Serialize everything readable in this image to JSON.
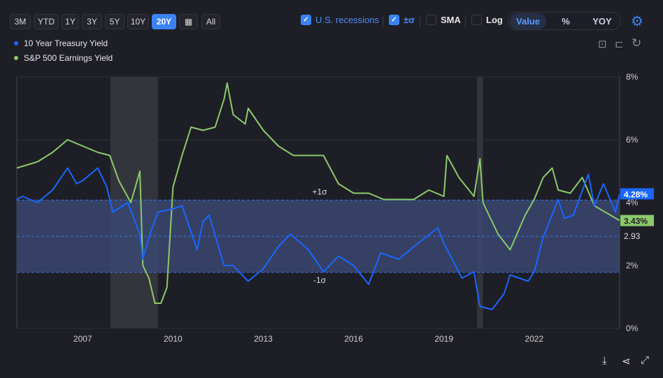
{
  "range_buttons": [
    "3M",
    "YTD",
    "1Y",
    "3Y",
    "5Y",
    "10Y",
    "20Y",
    "All"
  ],
  "active_range": "20Y",
  "legend": [
    {
      "label": "10 Year Treasury Yield",
      "color": "#1a66ff"
    },
    {
      "label": "S&P 500 Earnings Yield",
      "color": "#8cc96a"
    }
  ],
  "controls": {
    "recessions": "U.S. recessions",
    "sigma": "±σ",
    "sma": "SMA",
    "log": "Log"
  },
  "modes": [
    "Value",
    "%",
    "YOY"
  ],
  "active_mode": "Value",
  "chart_data": {
    "type": "line",
    "x_ticks": [
      2007,
      2010,
      2013,
      2016,
      2019,
      2022
    ],
    "x_range": [
      2004.81,
      2024.84
    ],
    "y_ticks": [
      "0%",
      "2%",
      "4%",
      "6%",
      "8%"
    ],
    "y_tick_values": [
      0,
      2,
      4,
      6,
      8
    ],
    "ylim": [
      0,
      8
    ],
    "sigma": {
      "mean": 2.93,
      "mean_label": "2.93",
      "plus": 4.08,
      "minus": 1.78,
      "plus_label": "+1σ",
      "minus_label": "-1σ"
    },
    "recessions": [
      [
        2007.92,
        2009.5
      ],
      [
        2020.1,
        2020.3
      ]
    ],
    "series": [
      {
        "name": "10 Year Treasury Yield",
        "color": "#1a66ff",
        "last_label": "4.28%",
        "points": [
          [
            2004.81,
            4.1
          ],
          [
            2005,
            4.2
          ],
          [
            2005.5,
            4.0
          ],
          [
            2006,
            4.4
          ],
          [
            2006.5,
            5.1
          ],
          [
            2006.8,
            4.6
          ],
          [
            2007,
            4.7
          ],
          [
            2007.5,
            5.1
          ],
          [
            2007.8,
            4.5
          ],
          [
            2008,
            3.7
          ],
          [
            2008.5,
            4.0
          ],
          [
            2008.9,
            3.0
          ],
          [
            2009,
            2.2
          ],
          [
            2009.2,
            2.9
          ],
          [
            2009.5,
            3.7
          ],
          [
            2010,
            3.8
          ],
          [
            2010.3,
            3.9
          ],
          [
            2010.8,
            2.5
          ],
          [
            2011,
            3.4
          ],
          [
            2011.2,
            3.6
          ],
          [
            2011.7,
            2.0
          ],
          [
            2012,
            2.0
          ],
          [
            2012.5,
            1.5
          ],
          [
            2013,
            1.9
          ],
          [
            2013.5,
            2.6
          ],
          [
            2013.9,
            3.0
          ],
          [
            2014.5,
            2.5
          ],
          [
            2015,
            1.8
          ],
          [
            2015.5,
            2.3
          ],
          [
            2016,
            2.0
          ],
          [
            2016.5,
            1.4
          ],
          [
            2016.9,
            2.4
          ],
          [
            2017.5,
            2.2
          ],
          [
            2018,
            2.6
          ],
          [
            2018.8,
            3.2
          ],
          [
            2019,
            2.7
          ],
          [
            2019.6,
            1.6
          ],
          [
            2020,
            1.8
          ],
          [
            2020.2,
            0.7
          ],
          [
            2020.6,
            0.6
          ],
          [
            2021,
            1.1
          ],
          [
            2021.2,
            1.7
          ],
          [
            2021.8,
            1.5
          ],
          [
            2022,
            1.8
          ],
          [
            2022.3,
            2.9
          ],
          [
            2022.8,
            4.1
          ],
          [
            2023,
            3.5
          ],
          [
            2023.3,
            3.6
          ],
          [
            2023.8,
            4.9
          ],
          [
            2024,
            3.9
          ],
          [
            2024.3,
            4.6
          ],
          [
            2024.7,
            3.7
          ],
          [
            2024.84,
            4.28
          ]
        ]
      },
      {
        "name": "S&P 500 Earnings Yield",
        "color": "#8cc96a",
        "last_label": "3.43%",
        "points": [
          [
            2004.81,
            5.1
          ],
          [
            2005.5,
            5.3
          ],
          [
            2006,
            5.6
          ],
          [
            2006.5,
            6.0
          ],
          [
            2007,
            5.8
          ],
          [
            2007.5,
            5.6
          ],
          [
            2007.9,
            5.5
          ],
          [
            2008.2,
            4.7
          ],
          [
            2008.6,
            4.0
          ],
          [
            2008.9,
            5.0
          ],
          [
            2009.0,
            2.0
          ],
          [
            2009.2,
            1.6
          ],
          [
            2009.4,
            0.8
          ],
          [
            2009.6,
            0.8
          ],
          [
            2009.8,
            1.3
          ],
          [
            2010,
            4.5
          ],
          [
            2010.3,
            5.5
          ],
          [
            2010.6,
            6.4
          ],
          [
            2011,
            6.3
          ],
          [
            2011.4,
            6.4
          ],
          [
            2011.7,
            7.3
          ],
          [
            2011.8,
            7.8
          ],
          [
            2012,
            6.8
          ],
          [
            2012.4,
            6.5
          ],
          [
            2012.5,
            7.0
          ],
          [
            2013,
            6.3
          ],
          [
            2013.5,
            5.8
          ],
          [
            2014,
            5.5
          ],
          [
            2015,
            5.5
          ],
          [
            2015.5,
            4.6
          ],
          [
            2016,
            4.3
          ],
          [
            2016.5,
            4.3
          ],
          [
            2017,
            4.1
          ],
          [
            2018,
            4.1
          ],
          [
            2018.5,
            4.4
          ],
          [
            2019,
            4.2
          ],
          [
            2019.1,
            5.5
          ],
          [
            2019.5,
            4.8
          ],
          [
            2020,
            4.2
          ],
          [
            2020.2,
            5.4
          ],
          [
            2020.3,
            4.0
          ],
          [
            2020.8,
            3.0
          ],
          [
            2021.2,
            2.5
          ],
          [
            2021.7,
            3.6
          ],
          [
            2022,
            4.1
          ],
          [
            2022.3,
            4.8
          ],
          [
            2022.6,
            5.1
          ],
          [
            2022.8,
            4.4
          ],
          [
            2023.2,
            4.3
          ],
          [
            2023.6,
            4.8
          ],
          [
            2024,
            3.9
          ],
          [
            2024.84,
            3.43
          ]
        ]
      }
    ]
  }
}
